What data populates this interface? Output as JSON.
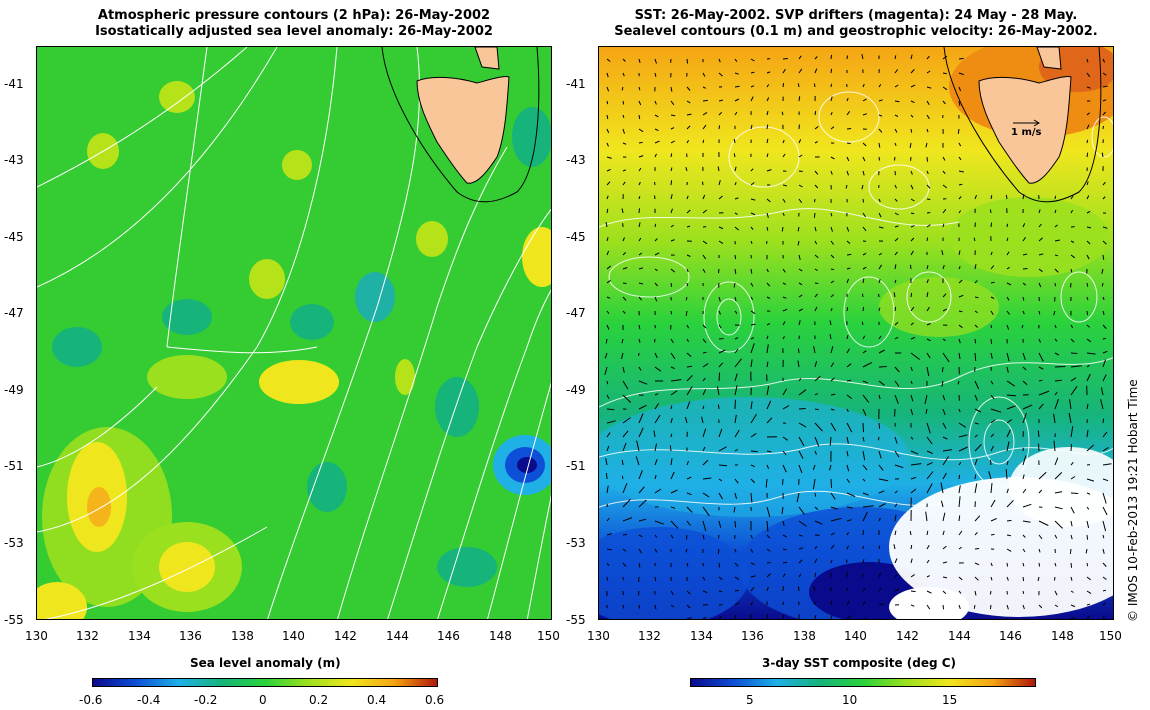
{
  "left_panel": {
    "title_line1": "Atmospheric pressure contours (2 hPa): 26-May-2002",
    "title_line2": "Isostatically adjusted sea level anomaly: 26-May-2002",
    "y_ticks": [
      "-41",
      "-43",
      "-45",
      "-47",
      "-49",
      "-51",
      "-53",
      "-55"
    ],
    "x_ticks": [
      "130",
      "132",
      "134",
      "136",
      "138",
      "140",
      "142",
      "144",
      "146",
      "148",
      "150"
    ],
    "colorbar": {
      "label": "Sea level anomaly (m)",
      "ticks": [
        "-0.6",
        "-0.4",
        "-0.2",
        "0",
        "0.2",
        "0.4",
        "0.6"
      ],
      "range": [
        -0.6,
        0.6
      ],
      "colors": [
        "#0a0a8c",
        "#0d4fd6",
        "#1fb0e6",
        "#16b47a",
        "#2ad23c",
        "#9be01e",
        "#f0e61e",
        "#f5a514",
        "#b01808"
      ]
    }
  },
  "right_panel": {
    "title_line1": "SST: 26-May-2002. SVP drifters (magenta): 24 May - 28 May.",
    "title_line2": "Sealevel contours (0.1 m) and geostrophic velocity: 26-May-2002.",
    "y_ticks": [
      "-41",
      "-43",
      "-45",
      "-47",
      "-49",
      "-51",
      "-53",
      "-55"
    ],
    "x_ticks": [
      "130",
      "132",
      "134",
      "136",
      "138",
      "140",
      "142",
      "144",
      "146",
      "148",
      "150"
    ],
    "velocity_scale_label": "1 m/s",
    "colorbar": {
      "label": "3-day SST composite (deg C)",
      "ticks": [
        "5",
        "10",
        "15"
      ],
      "range": [
        1.5,
        19.5
      ],
      "colors": [
        "#0a0a8c",
        "#0d4fd6",
        "#1fb0e6",
        "#16b47a",
        "#2ad23c",
        "#9be01e",
        "#f0e61e",
        "#f5a514",
        "#b01808"
      ]
    }
  },
  "map_extent": {
    "lon": [
      130,
      150
    ],
    "lat": [
      -55,
      -40
    ]
  },
  "land_color": "#f9c69a",
  "credit": "© IMOS 10-Feb-2013 19:21 Hobart Time"
}
